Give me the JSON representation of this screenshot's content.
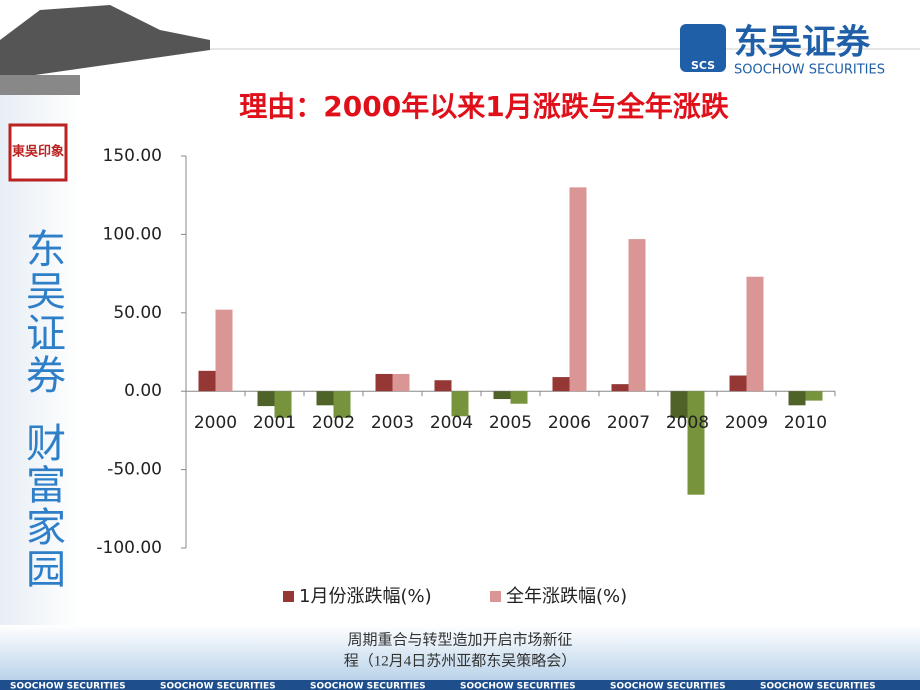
{
  "slide": {
    "logo_cn": "东吴证券",
    "logo_abbr": "SCS",
    "logo_en": "SOOCHOW SECURITIES",
    "seal": "東吳印象",
    "side_text_1": "东吴证券",
    "side_text_2": "财富家园",
    "footer_line_1": "周期重合与转型造加开启市场新征",
    "footer_line_2": "程（12月4日苏州亚都东吴策略会）",
    "footer_strip": "SOOCHOW SECURITIES"
  },
  "chart_data": {
    "type": "bar",
    "title": "理由：2000年以来1月涨跌与全年涨跌",
    "categories": [
      "2000",
      "2001",
      "2002",
      "2003",
      "2004",
      "2005",
      "2006",
      "2007",
      "2008",
      "2009",
      "2010"
    ],
    "series": [
      {
        "name": "1月份涨跌幅(%)",
        "color": "#953735",
        "negative_color": "#4f6228",
        "values": [
          13,
          -9.5,
          -9,
          11,
          7,
          -5,
          9,
          4.5,
          -17,
          10,
          -9
        ]
      },
      {
        "name": "全年涨跌幅(%)",
        "color": "#d99694",
        "negative_color": "#77933c",
        "values": [
          52,
          -17,
          -17,
          11,
          -16,
          -8,
          130,
          97,
          -66,
          73,
          -6
        ]
      }
    ],
    "ylim": [
      -100,
      150
    ],
    "yticks": [
      {
        "value": -100,
        "label": "-100.00"
      },
      {
        "value": -50,
        "label": "-50.00"
      },
      {
        "value": 0,
        "label": "0.00"
      },
      {
        "value": 50,
        "label": "50.00"
      },
      {
        "value": 100,
        "label": "100.00"
      },
      {
        "value": 150,
        "label": "150.00"
      }
    ],
    "legend": "bottom"
  }
}
